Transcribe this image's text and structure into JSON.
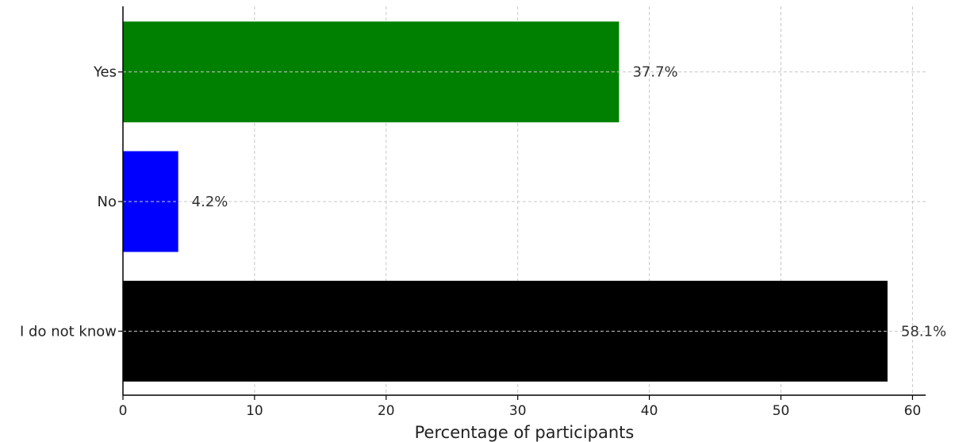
{
  "chart_data": {
    "type": "bar",
    "orientation": "horizontal",
    "categories": [
      "Yes",
      "No",
      "I do not know"
    ],
    "values": [
      37.7,
      4.2,
      58.1
    ],
    "value_labels": [
      "37.7%",
      "4.2%",
      "58.1%"
    ],
    "colors": [
      "#008000",
      "#0000ff",
      "#000000"
    ],
    "title": "",
    "xlabel": "Percentage of participants",
    "ylabel": "",
    "xlim": [
      0,
      61
    ],
    "xticks": [
      0,
      10,
      20,
      30,
      40,
      50,
      60
    ],
    "grid": true,
    "legend": "none"
  }
}
